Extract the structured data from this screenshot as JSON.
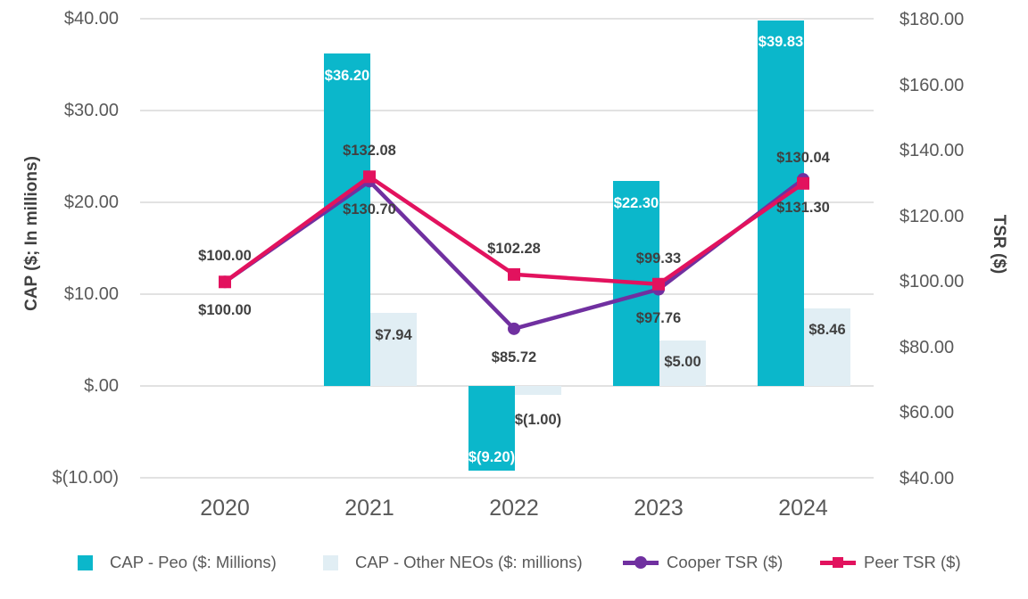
{
  "chart_data": {
    "type": "combo-bar-line",
    "categories": [
      "2020",
      "2021",
      "2022",
      "2023",
      "2024"
    ],
    "left_axis": {
      "title": "CAP ($; In millions)",
      "min": -10,
      "max": 40,
      "ticks": [
        {
          "v": 40,
          "label": "$40.00"
        },
        {
          "v": 30,
          "label": "$30.00"
        },
        {
          "v": 20,
          "label": "$20.00"
        },
        {
          "v": 10,
          "label": "$10.00"
        },
        {
          "v": 0,
          "label": "$.00"
        },
        {
          "v": -10,
          "label": "$(10.00)"
        }
      ]
    },
    "right_axis": {
      "title": "TSR ($)",
      "min": 40,
      "max": 180,
      "ticks": [
        {
          "v": 180,
          "label": "$180.00"
        },
        {
          "v": 160,
          "label": "$160.00"
        },
        {
          "v": 140,
          "label": "$140.00"
        },
        {
          "v": 120,
          "label": "$120.00"
        },
        {
          "v": 100,
          "label": "$100.00"
        },
        {
          "v": 80,
          "label": "$80.00"
        },
        {
          "v": 60,
          "label": "$60.00"
        },
        {
          "v": 40,
          "label": "$40.00"
        }
      ]
    },
    "series": [
      {
        "name": "CAP - Peo ($: Millions)",
        "type": "bar",
        "axis": "left",
        "color": "#0BB7CB",
        "label_color": "#FFFFFF",
        "labels_inside": true,
        "values": [
          null,
          36.2,
          -9.2,
          22.3,
          39.83
        ],
        "labels": [
          null,
          "$36.20",
          "$(9.20)",
          "$22.30",
          "$39.83"
        ]
      },
      {
        "name": "CAP - Other NEOs ($: millions)",
        "type": "bar",
        "axis": "left",
        "color": "#E1EEF4",
        "label_color": "#404040",
        "labels_inside": false,
        "values": [
          null,
          7.94,
          -1.0,
          5.0,
          8.46
        ],
        "labels": [
          null,
          "$7.94",
          "$(1.00)",
          "$5.00",
          "$8.46"
        ]
      },
      {
        "name": "Cooper TSR ($)",
        "type": "line",
        "axis": "right",
        "color": "#7030A0",
        "marker": "circle",
        "label_placement": "below",
        "values": [
          100.0,
          130.7,
          85.72,
          97.76,
          131.3
        ],
        "labels": [
          "$100.00",
          "$130.70",
          "$85.72",
          "$97.76",
          "$131.30"
        ]
      },
      {
        "name": "Peer TSR ($)",
        "type": "line",
        "axis": "right",
        "color": "#E2125E",
        "marker": "square",
        "label_placement": "above",
        "values": [
          100.0,
          132.08,
          102.28,
          99.33,
          130.04
        ],
        "labels": [
          "$100.00",
          "$132.08",
          "$102.28",
          "$99.33",
          "$130.04"
        ]
      }
    ],
    "gridline_color": "#E2E2E2",
    "tick_text_color": "#595959",
    "data_label_color": "#404040",
    "legend_position": "bottom"
  }
}
